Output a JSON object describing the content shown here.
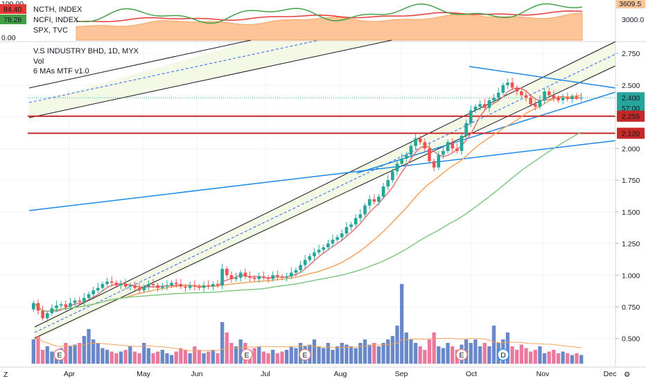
{
  "chart_data": {
    "type": "candlestick",
    "title": "V.S INDUSTRY BHD, 1D, MYX",
    "legend_lines": [
      "Vol",
      "6 MAs MTF v1.0"
    ],
    "compare_panel": {
      "series": [
        {
          "name": "NCTH, INDEX",
          "badge": "84.40",
          "color": "#e53935"
        },
        {
          "name": "NCFI, INDEX",
          "badge": "78.28",
          "color": "#43a047"
        },
        {
          "name": "SPX, TVC",
          "badge": "",
          "color": "#f5a25d"
        }
      ],
      "y_ticks": [
        "100.00",
        "0.00"
      ],
      "right_ticks": [
        "3609.5",
        "3000.0"
      ]
    },
    "y_axis": {
      "min": 0.4,
      "max": 2.8,
      "ticks": [
        "2.750",
        "2.500",
        "2.250",
        "2.000",
        "1.750",
        "1.500",
        "1.250",
        "1.000",
        "0.750",
        "0.500"
      ],
      "tick_values": [
        2.75,
        2.5,
        2.25,
        2.0,
        1.75,
        1.5,
        1.25,
        1.0,
        0.75,
        0.5
      ]
    },
    "x_axis": {
      "labels": [
        "Apr",
        "May",
        "Jun",
        "Jul",
        "Aug",
        "Sep",
        "Oct",
        "Nov",
        "Dec"
      ]
    },
    "price_labels": [
      {
        "text": "2.400",
        "value": 2.4,
        "color": "#26a69a"
      },
      {
        "text": "57:00",
        "value": 2.34,
        "color": "#26a69a"
      },
      {
        "text": "2.255",
        "value": 2.255,
        "color": "#c62828"
      },
      {
        "text": "2.120",
        "value": 2.12,
        "color": "#c62828"
      }
    ],
    "horizontal_levels": [
      2.255,
      2.12
    ],
    "event_markers": [
      "E",
      "E",
      "E",
      "E",
      "D"
    ],
    "close_series": [
      0.78,
      0.72,
      0.66,
      0.7,
      0.74,
      0.76,
      0.77,
      0.75,
      0.78,
      0.8,
      0.79,
      0.82,
      0.85,
      0.88,
      0.9,
      0.93,
      0.95,
      0.94,
      0.92,
      0.93,
      0.91,
      0.92,
      0.9,
      0.88,
      0.91,
      0.93,
      0.92,
      0.9,
      0.91,
      0.92,
      0.94,
      0.93,
      0.91,
      0.9,
      0.92,
      0.91,
      0.9,
      0.92,
      0.91,
      0.93,
      0.92,
      1.05,
      1.0,
      0.97,
      0.98,
      1.02,
      0.99,
      0.98,
      0.97,
      0.99,
      0.98,
      0.97,
      1.0,
      0.99,
      0.98,
      0.99,
      1.02,
      1.04,
      1.08,
      1.12,
      1.15,
      1.18,
      1.2,
      1.22,
      1.25,
      1.28,
      1.3,
      1.33,
      1.38,
      1.4,
      1.45,
      1.48,
      1.55,
      1.6,
      1.58,
      1.62,
      1.7,
      1.75,
      1.82,
      1.88,
      1.92,
      1.95,
      2.02,
      2.08,
      2.05,
      2.0,
      1.9,
      1.85,
      1.95,
      1.98,
      2.05,
      2.0,
      1.98,
      2.1,
      2.2,
      2.3,
      2.33,
      2.35,
      2.32,
      2.38,
      2.4,
      2.44,
      2.5,
      2.52,
      2.48,
      2.45,
      2.42,
      2.4,
      2.35,
      2.33,
      2.38,
      2.45,
      2.42,
      2.4,
      2.38,
      2.4,
      2.39,
      2.41,
      2.4,
      2.4
    ],
    "volume_relative": [
      0.7,
      0.8,
      0.4,
      0.5,
      0.35,
      0.3,
      0.45,
      0.6,
      0.5,
      0.55,
      0.6,
      0.8,
      1.0,
      0.7,
      0.6,
      0.45,
      0.4,
      0.35,
      0.3,
      0.35,
      0.4,
      0.5,
      0.35,
      0.3,
      0.6,
      0.45,
      0.3,
      0.35,
      0.4,
      0.3,
      0.25,
      0.35,
      0.45,
      0.4,
      0.3,
      0.5,
      0.4,
      0.3,
      0.35,
      0.4,
      0.3,
      1.2,
      0.9,
      0.6,
      0.5,
      0.7,
      0.6,
      0.4,
      0.45,
      0.5,
      0.35,
      0.3,
      0.4,
      0.3,
      0.35,
      0.4,
      0.5,
      0.45,
      0.6,
      0.5,
      0.55,
      0.7,
      0.5,
      0.45,
      0.6,
      0.4,
      0.5,
      0.6,
      0.55,
      0.5,
      0.45,
      0.6,
      0.7,
      0.55,
      0.6,
      0.5,
      0.6,
      0.7,
      0.8,
      1.1,
      2.3,
      0.9,
      0.7,
      0.6,
      0.5,
      0.4,
      0.7,
      0.9,
      0.5,
      0.45,
      0.6,
      0.5,
      0.4,
      0.55,
      0.7,
      0.6,
      0.7,
      0.5,
      0.6,
      0.5,
      1.1,
      0.6,
      0.7,
      0.9,
      0.5,
      0.4,
      0.55,
      0.45,
      0.35,
      0.4,
      0.5,
      0.3,
      0.35,
      0.4,
      0.3,
      0.35,
      0.3,
      0.25,
      0.3,
      0.25
    ]
  }
}
